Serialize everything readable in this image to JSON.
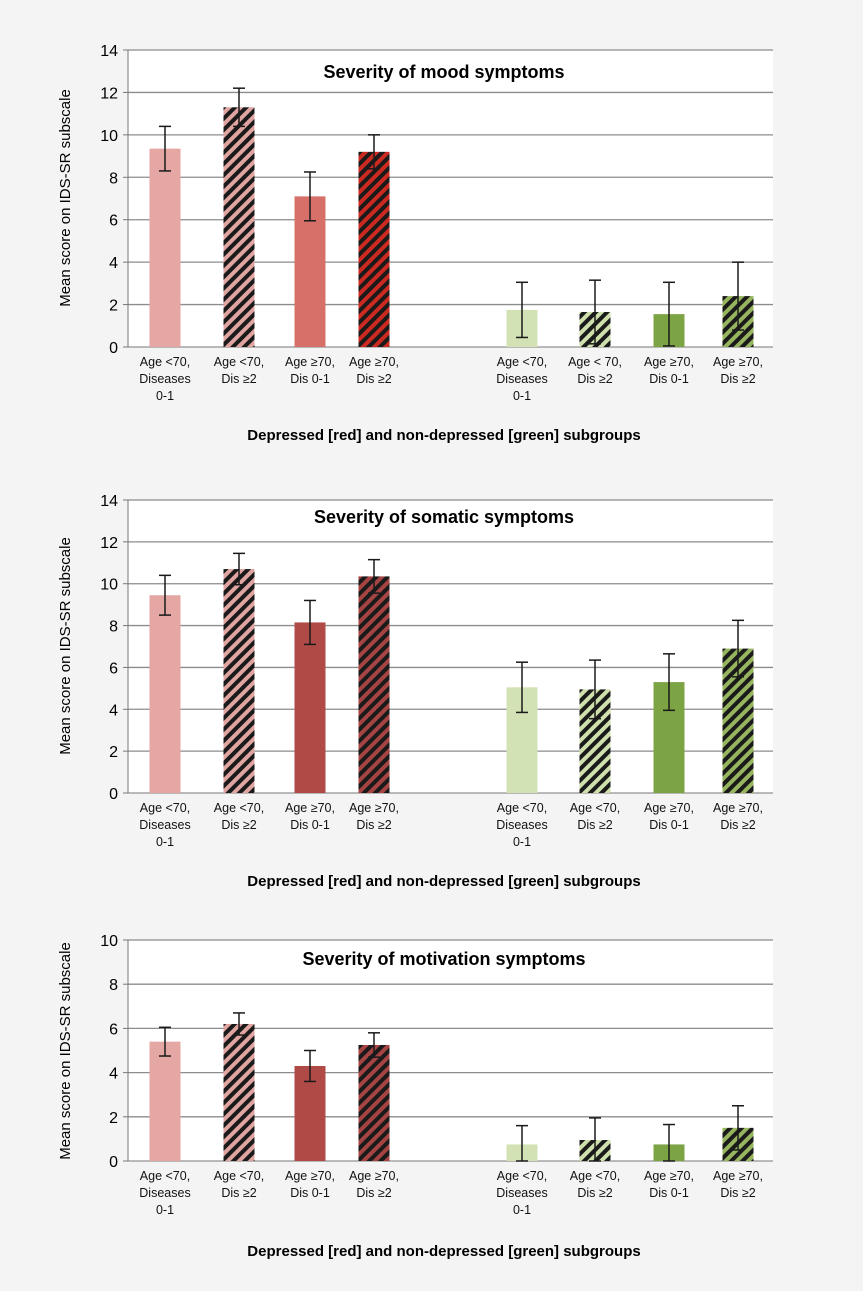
{
  "colors": {
    "background": "#f4f4f4",
    "plot_background": "#ffffff",
    "grid": "#8c8c8c",
    "axis": "#777777",
    "error_bar": "#1a1a1a",
    "hatch_dark": "#1a1a1a"
  },
  "chart_data": [
    {
      "type": "bar",
      "title": "Severity of mood symptoms",
      "xlabel": "Depressed [red] and non-depressed [green] subgroups",
      "ylabel": "Mean score on IDS-SR subscale",
      "ylim": [
        0,
        14
      ],
      "yticks": [
        0,
        2,
        4,
        6,
        8,
        10,
        12,
        14
      ],
      "grid": true,
      "categories": [
        [
          "Age <70,",
          "Diseases",
          "0-1"
        ],
        [
          "Age <70,",
          "Dis ≥2"
        ],
        [
          "Age ≥70,",
          "Dis 0-1"
        ],
        [
          "Age ≥70,",
          "Dis ≥2"
        ],
        [
          "Age <70,",
          "Diseases",
          "0-1"
        ],
        [
          "Age < 70,",
          "Dis ≥2"
        ],
        [
          "Age ≥70,",
          "Dis 0-1"
        ],
        [
          "Age ≥70,",
          "Dis ≥2"
        ]
      ],
      "values": [
        9.35,
        11.3,
        7.1,
        9.2,
        1.75,
        1.65,
        1.55,
        2.4
      ],
      "errors": [
        1.05,
        0.9,
        1.15,
        0.8,
        1.3,
        1.5,
        1.5,
        1.6
      ],
      "colors": [
        "#e4a7a4",
        "#e0a4a1",
        "#d8706a",
        "#cc2a20",
        "#d3e2b5",
        "#cfe0ad",
        "#7ca444",
        "#97b45f"
      ],
      "hatched": [
        false,
        true,
        false,
        true,
        false,
        true,
        false,
        true
      ]
    },
    {
      "type": "bar",
      "title": "Severity of somatic symptoms",
      "xlabel": "Depressed [red] and non-depressed [green] subgroups",
      "ylabel": "Mean score on IDS-SR subscale",
      "ylim": [
        0,
        14
      ],
      "yticks": [
        0,
        2,
        4,
        6,
        8,
        10,
        12,
        14
      ],
      "grid": true,
      "categories": [
        [
          "Age <70,",
          "Diseases",
          "0-1"
        ],
        [
          "Age <70,",
          "Dis ≥2"
        ],
        [
          "Age ≥70,",
          "Dis 0-1"
        ],
        [
          "Age ≥70,",
          "Dis ≥2"
        ],
        [
          "Age <70,",
          "Diseases",
          "0-1"
        ],
        [
          "Age <70,",
          "Dis ≥2"
        ],
        [
          "Age ≥70,",
          "Dis 0-1"
        ],
        [
          "Age ≥70,",
          "Dis ≥2"
        ]
      ],
      "values": [
        9.45,
        10.7,
        8.15,
        10.35,
        5.05,
        4.95,
        5.3,
        6.9
      ],
      "errors": [
        0.95,
        0.75,
        1.05,
        0.8,
        1.2,
        1.4,
        1.35,
        1.35
      ],
      "colors": [
        "#e4a7a4",
        "#e0a4a1",
        "#b04a47",
        "#a54442",
        "#d3e2b5",
        "#cfe0ad",
        "#7ca444",
        "#97b45f"
      ],
      "hatched": [
        false,
        true,
        false,
        true,
        false,
        true,
        false,
        true
      ]
    },
    {
      "type": "bar",
      "title": "Severity of motivation symptoms",
      "xlabel": "Depressed [red] and non-depressed [green] subgroups",
      "ylabel": "Mean score on IDS-SR subscale",
      "ylim": [
        0,
        10
      ],
      "yticks": [
        0,
        2,
        4,
        6,
        8,
        10
      ],
      "grid": true,
      "categories": [
        [
          "Age <70,",
          "Diseases",
          "0-1"
        ],
        [
          "Age <70,",
          "Dis ≥2"
        ],
        [
          "Age ≥70,",
          "Dis 0-1"
        ],
        [
          "Age ≥70,",
          "Dis ≥2"
        ],
        [
          "Age <70,",
          "Diseases",
          "0-1"
        ],
        [
          "Age <70,",
          "Dis ≥2"
        ],
        [
          "Age ≥70,",
          "Dis 0-1"
        ],
        [
          "Age ≥70,",
          "Dis ≥2"
        ]
      ],
      "values": [
        5.4,
        6.2,
        4.3,
        5.25,
        0.75,
        0.95,
        0.75,
        1.5
      ],
      "errors": [
        0.65,
        0.5,
        0.7,
        0.55,
        0.85,
        1.0,
        0.9,
        1.0
      ],
      "colors": [
        "#e4a7a4",
        "#e0a4a1",
        "#b04a47",
        "#a54442",
        "#d3e2b5",
        "#cfe0ad",
        "#7ca444",
        "#97b45f"
      ],
      "hatched": [
        false,
        true,
        false,
        true,
        false,
        true,
        false,
        true
      ]
    }
  ]
}
